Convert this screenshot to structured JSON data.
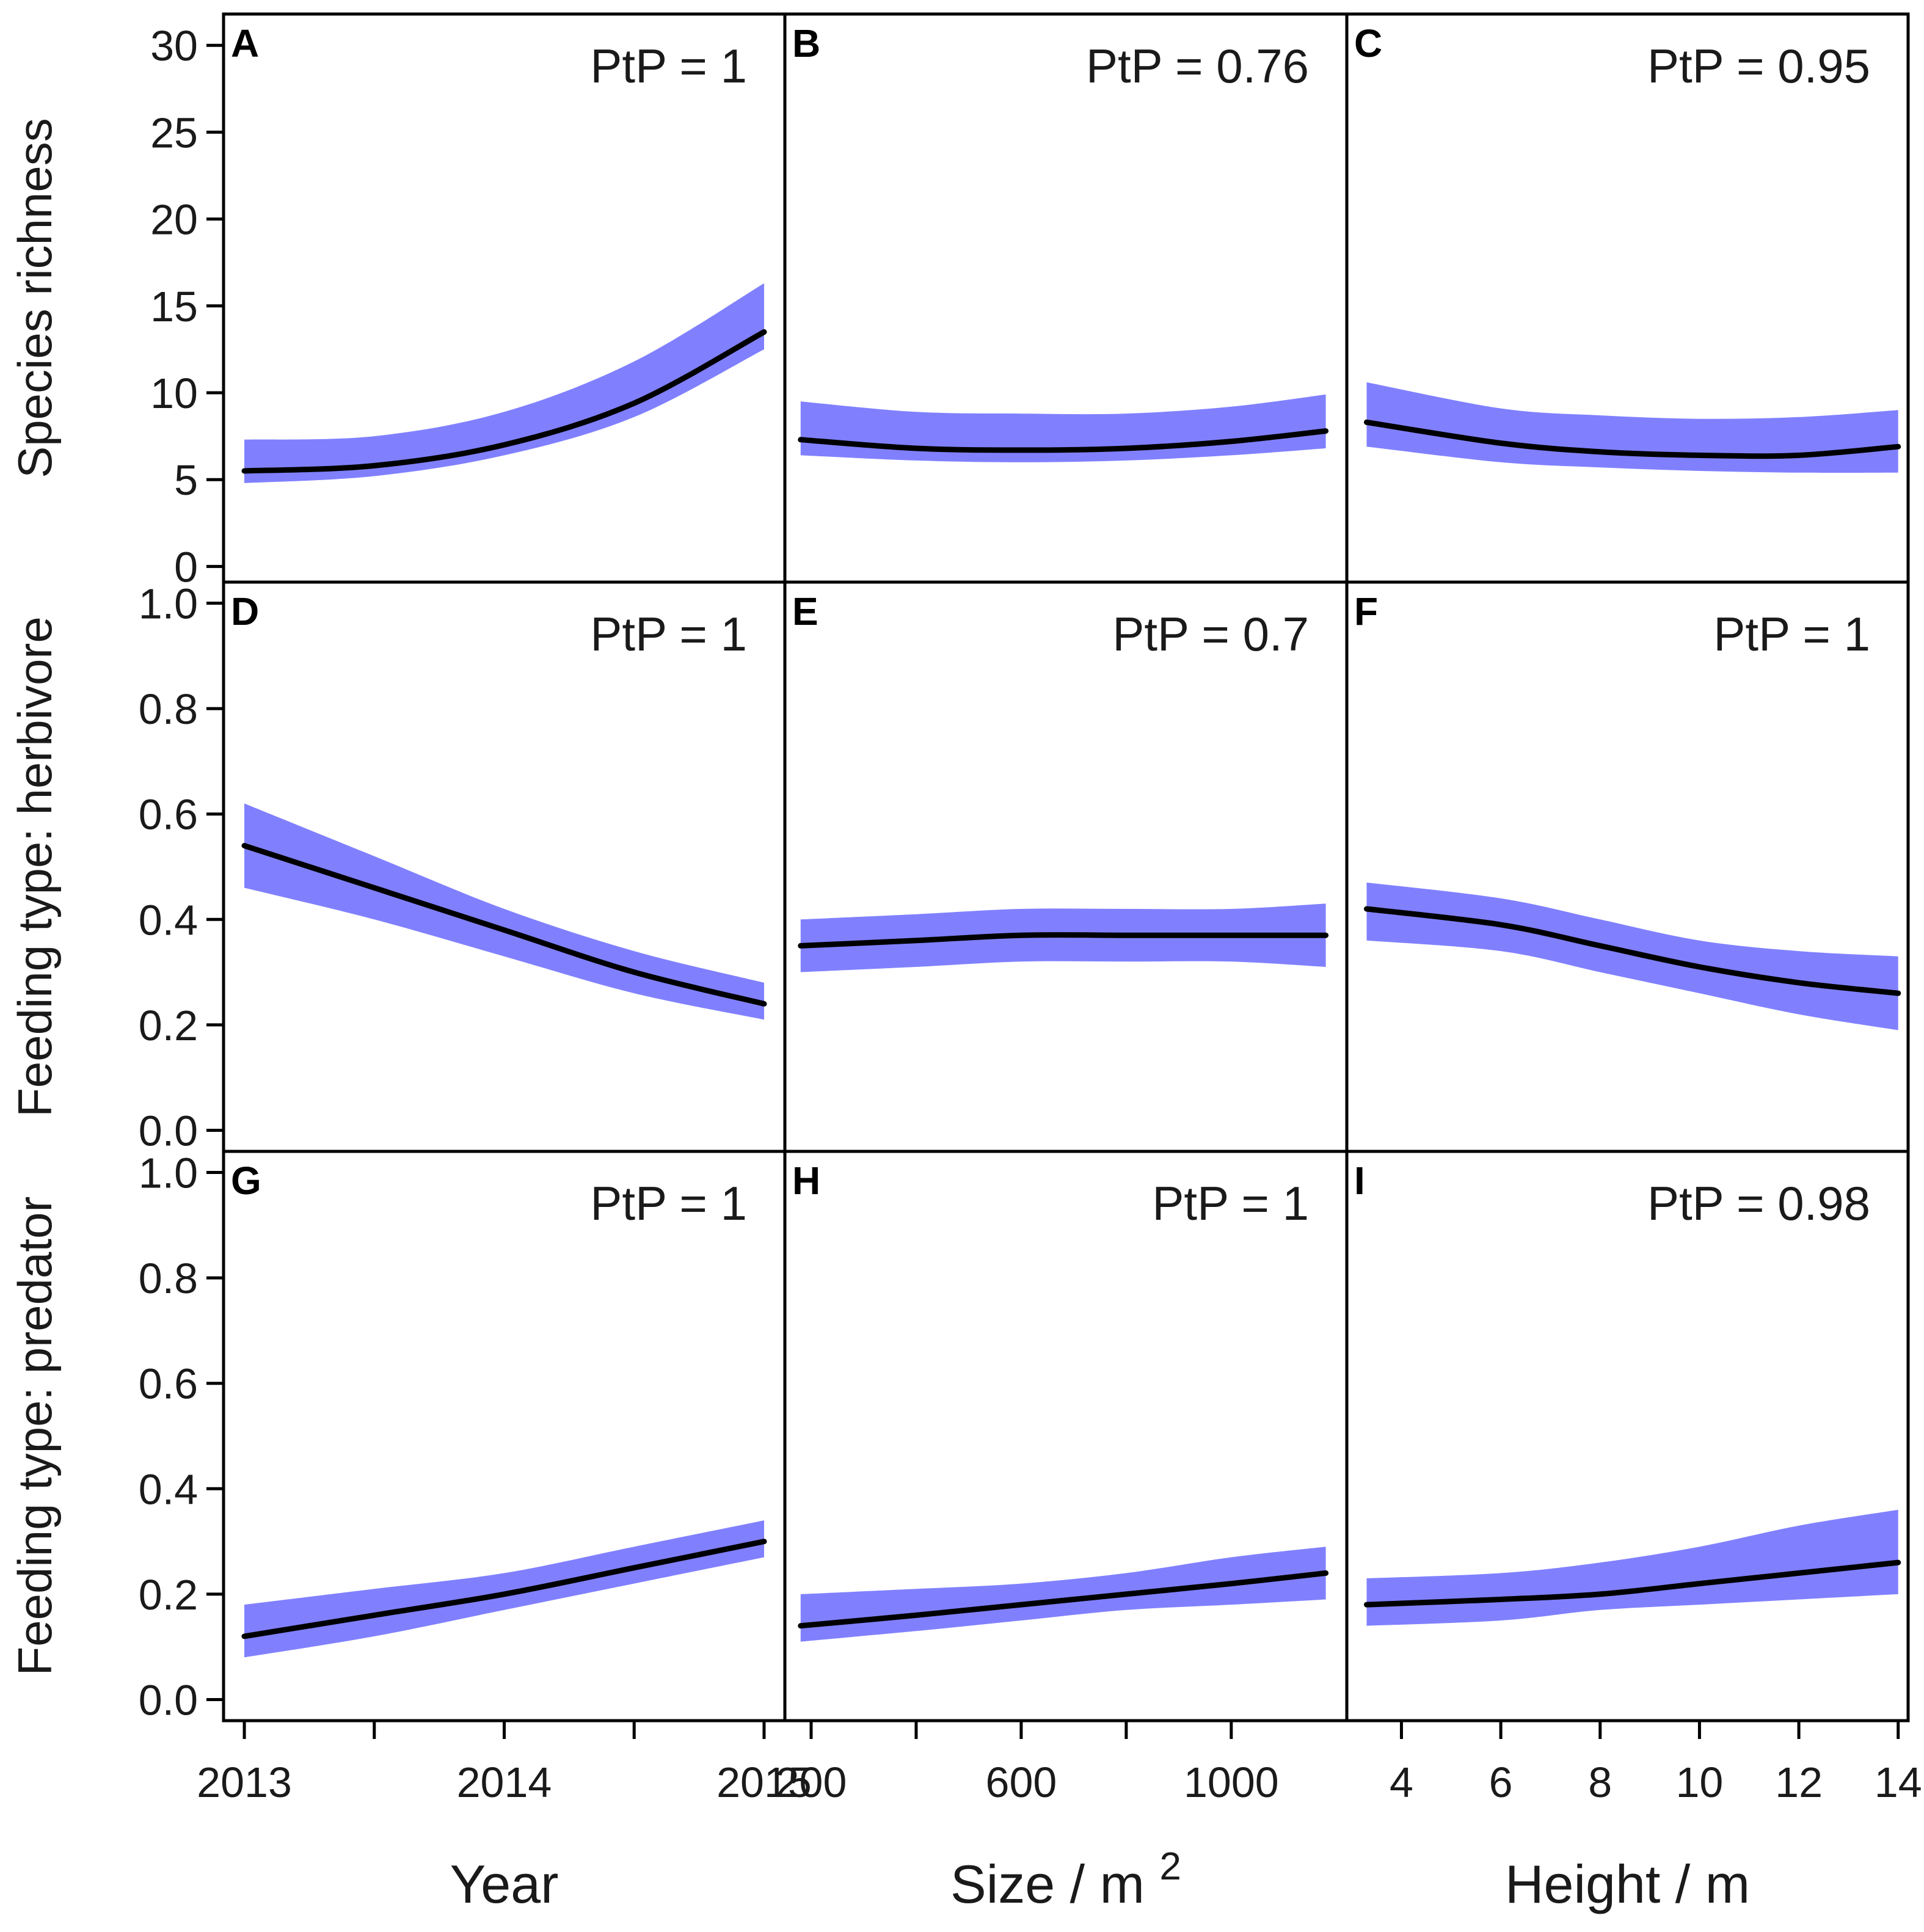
{
  "colors": {
    "band": "#8080ff",
    "line": "#000000",
    "frame": "#000000"
  },
  "chart_data": {
    "type": "line",
    "layout": "3x3 grid of panels",
    "x_axes": [
      {
        "title": "Year",
        "range": [
          2012.92,
          2015.08
        ],
        "ticks": [
          2013,
          2013.5,
          2014,
          2014.5,
          2015
        ],
        "tick_labels": [
          "2013",
          "",
          "2014",
          "",
          "2015"
        ]
      },
      {
        "title_main": "Size / m",
        "title_sup": "2",
        "range": [
          150,
          1220
        ],
        "ticks": [
          200,
          400,
          600,
          800,
          1000
        ],
        "tick_labels": [
          "200",
          "",
          "600",
          "",
          "1000"
        ]
      },
      {
        "title": "Height / m",
        "range": [
          2.9,
          14.2
        ],
        "ticks": [
          4,
          6,
          8,
          10,
          12,
          14
        ],
        "tick_labels": [
          "4",
          "6",
          "8",
          "10",
          "12",
          "14"
        ]
      }
    ],
    "rows": [
      {
        "ylabel": "Species richness",
        "ylim": [
          -0.9,
          31.8
        ],
        "ticks": [
          0,
          5,
          10,
          15,
          20,
          25,
          30
        ],
        "tick_labels": [
          "0",
          "5",
          "10",
          "15",
          "20",
          "25",
          "30"
        ]
      },
      {
        "ylabel": "Feeding type: herbivore",
        "ylim": [
          -0.04,
          1.04
        ],
        "ticks": [
          0,
          0.2,
          0.4,
          0.6,
          0.8,
          1.0
        ],
        "tick_labels": [
          "0.0",
          "0.2",
          "0.4",
          "0.6",
          "0.8",
          "1.0"
        ]
      },
      {
        "ylabel": "Feeding type: predator",
        "ylim": [
          -0.04,
          1.04
        ],
        "ticks": [
          0,
          0.2,
          0.4,
          0.6,
          0.8,
          1.0
        ],
        "tick_labels": [
          "0.0",
          "0.2",
          "0.4",
          "0.6",
          "0.8",
          "1.0"
        ]
      }
    ],
    "panels": [
      {
        "label": "A",
        "ptp": "PtP = 1",
        "row": 0,
        "col": 0,
        "x": [
          2013,
          2013.5,
          2014,
          2014.5,
          2015
        ],
        "y": [
          5.5,
          5.8,
          7.0,
          9.4,
          13.5
        ],
        "lower": [
          4.8,
          5.2,
          6.4,
          8.6,
          12.5
        ],
        "upper": [
          7.3,
          7.5,
          8.9,
          11.8,
          16.3
        ]
      },
      {
        "label": "B",
        "ptp": "PtP = 0.76",
        "row": 0,
        "col": 1,
        "x": [
          180,
          400,
          600,
          800,
          1000,
          1180
        ],
        "y": [
          7.3,
          6.8,
          6.7,
          6.8,
          7.2,
          7.8
        ],
        "lower": [
          6.4,
          6.1,
          6.0,
          6.1,
          6.4,
          6.8
        ],
        "upper": [
          9.5,
          8.9,
          8.8,
          8.8,
          9.2,
          9.9
        ]
      },
      {
        "label": "C",
        "ptp": "PtP = 0.95",
        "row": 0,
        "col": 2,
        "x": [
          3.3,
          6,
          8,
          10,
          12,
          14
        ],
        "y": [
          8.3,
          7.1,
          6.6,
          6.4,
          6.4,
          6.9
        ],
        "lower": [
          6.9,
          6.0,
          5.7,
          5.5,
          5.4,
          5.4
        ],
        "upper": [
          10.6,
          9.1,
          8.7,
          8.5,
          8.6,
          9.0
        ]
      },
      {
        "label": "D",
        "ptp": "PtP = 1",
        "row": 1,
        "col": 0,
        "x": [
          2013,
          2013.5,
          2014,
          2014.5,
          2015
        ],
        "y": [
          0.54,
          0.46,
          0.38,
          0.3,
          0.24
        ],
        "lower": [
          0.46,
          0.4,
          0.33,
          0.26,
          0.21
        ],
        "upper": [
          0.62,
          0.52,
          0.42,
          0.34,
          0.28
        ]
      },
      {
        "label": "E",
        "ptp": "PtP = 0.7",
        "row": 1,
        "col": 1,
        "x": [
          180,
          400,
          600,
          800,
          1000,
          1180
        ],
        "y": [
          0.35,
          0.36,
          0.37,
          0.37,
          0.37,
          0.37
        ],
        "lower": [
          0.3,
          0.31,
          0.32,
          0.32,
          0.32,
          0.31
        ],
        "upper": [
          0.4,
          0.41,
          0.42,
          0.42,
          0.42,
          0.43
        ]
      },
      {
        "label": "F",
        "ptp": "PtP = 1",
        "row": 1,
        "col": 2,
        "x": [
          3.3,
          6,
          8,
          10,
          12,
          14
        ],
        "y": [
          0.42,
          0.39,
          0.35,
          0.31,
          0.28,
          0.26
        ],
        "lower": [
          0.36,
          0.34,
          0.3,
          0.26,
          0.22,
          0.19
        ],
        "upper": [
          0.47,
          0.44,
          0.4,
          0.36,
          0.34,
          0.33
        ]
      },
      {
        "label": "G",
        "ptp": "PtP = 1",
        "row": 2,
        "col": 0,
        "x": [
          2013,
          2013.5,
          2014,
          2014.5,
          2015
        ],
        "y": [
          0.12,
          0.16,
          0.2,
          0.25,
          0.3
        ],
        "lower": [
          0.08,
          0.12,
          0.17,
          0.22,
          0.27
        ],
        "upper": [
          0.18,
          0.21,
          0.24,
          0.29,
          0.34
        ]
      },
      {
        "label": "H",
        "ptp": "PtP = 1",
        "row": 2,
        "col": 1,
        "x": [
          180,
          400,
          600,
          800,
          1000,
          1180
        ],
        "y": [
          0.14,
          0.16,
          0.18,
          0.2,
          0.22,
          0.24
        ],
        "lower": [
          0.11,
          0.13,
          0.15,
          0.17,
          0.18,
          0.19
        ],
        "upper": [
          0.2,
          0.21,
          0.22,
          0.24,
          0.27,
          0.29
        ]
      },
      {
        "label": "I",
        "ptp": "PtP = 0.98",
        "row": 2,
        "col": 2,
        "x": [
          3.3,
          6,
          8,
          10,
          12,
          14
        ],
        "y": [
          0.18,
          0.19,
          0.2,
          0.22,
          0.24,
          0.26
        ],
        "lower": [
          0.14,
          0.15,
          0.17,
          0.18,
          0.19,
          0.2
        ],
        "upper": [
          0.23,
          0.24,
          0.26,
          0.29,
          0.33,
          0.36
        ]
      }
    ]
  }
}
